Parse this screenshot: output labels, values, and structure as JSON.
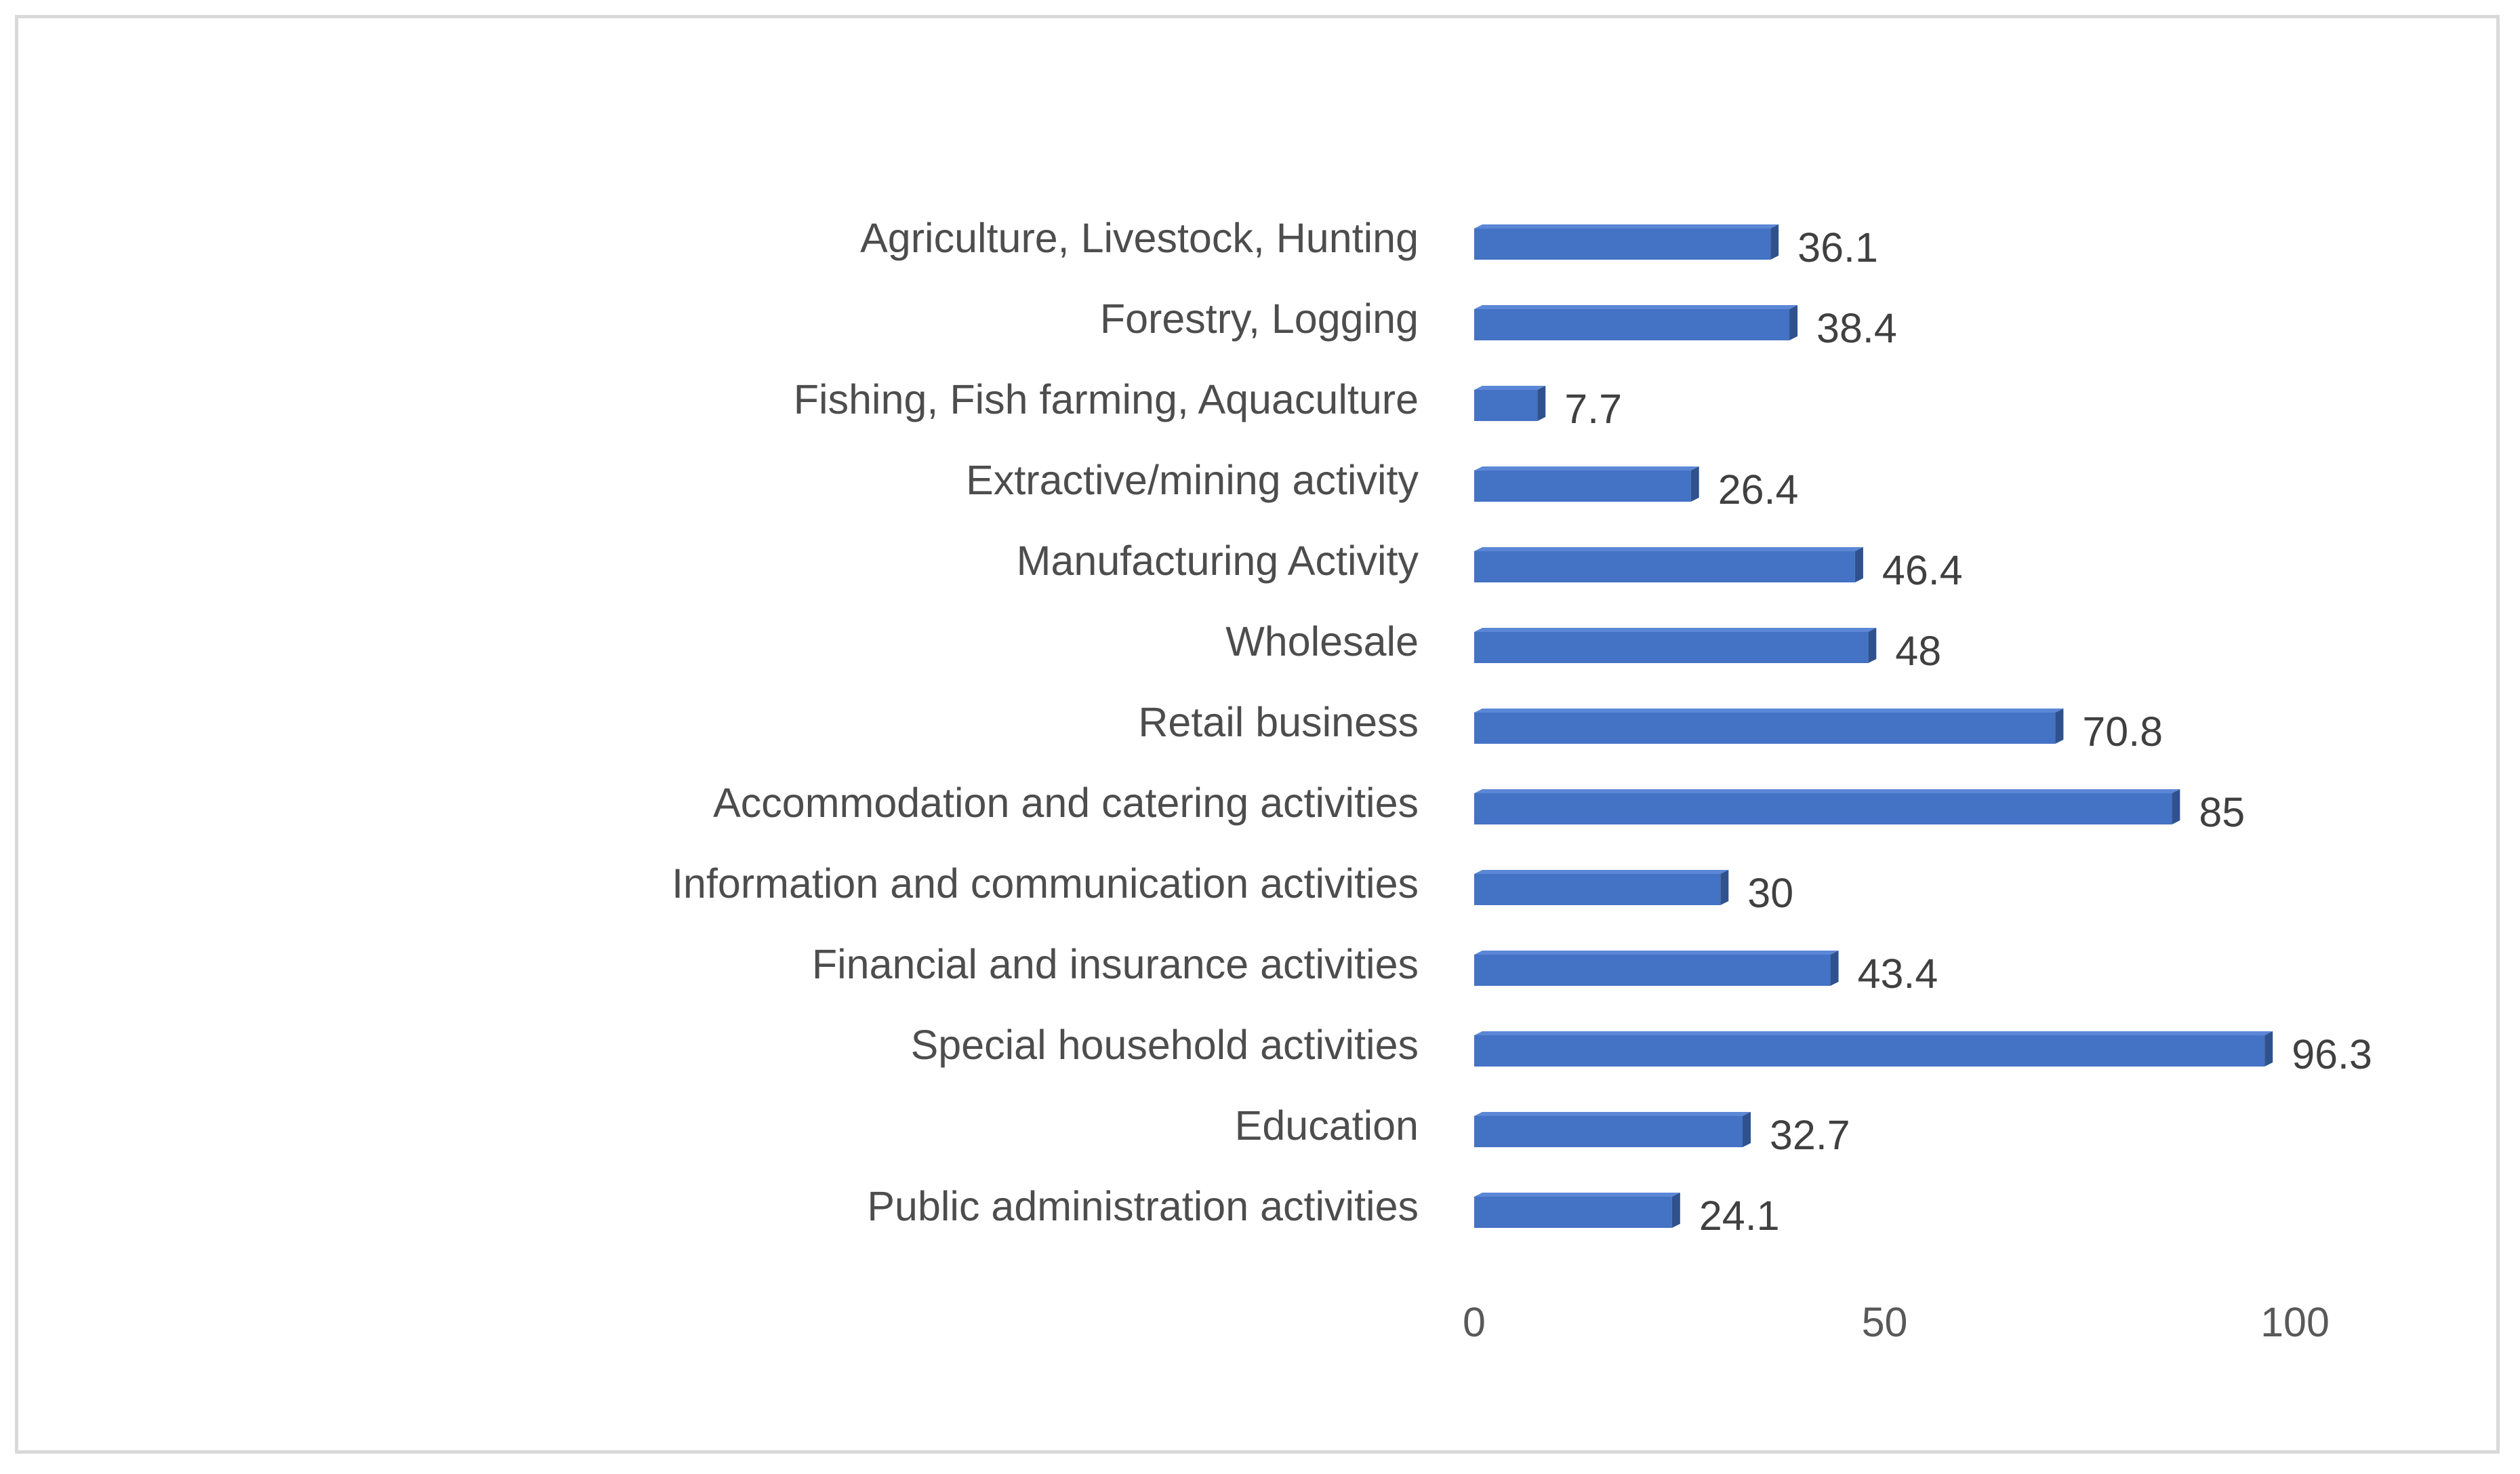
{
  "chart_data": {
    "type": "bar",
    "orientation": "horizontal",
    "title": "",
    "xlabel": "",
    "ylabel": "",
    "categories": [
      "Agriculture, Livestock, Hunting",
      "Forestry, Logging",
      "Fishing, Fish farming, Aquaculture",
      "Extractive/mining activity",
      "Manufacturing Activity",
      "Wholesale",
      "Retail business",
      "Accommodation and catering activities",
      "Information and communication activities",
      "Financial and insurance activities",
      "Special household activities",
      "Education",
      "Public administration activities"
    ],
    "values": [
      36.1,
      38.4,
      7.7,
      26.4,
      46.4,
      48,
      70.8,
      85,
      30,
      43.4,
      96.3,
      32.7,
      24.1
    ],
    "value_labels": [
      "36.1",
      "38.4",
      "7.7",
      "26.4",
      "46.4",
      "48",
      "70.8",
      "85",
      "30",
      "43.4",
      "96.3",
      "32.7",
      "24.1"
    ],
    "xlim": [
      0,
      100
    ],
    "xticks": [
      0,
      50,
      100
    ],
    "xtick_labels": [
      "0",
      "50",
      "100"
    ],
    "grid": false,
    "legend": "none",
    "colors": {
      "bar_front": "#4472c4",
      "bar_top": "#5b87d6",
      "bar_side": "#2f528f",
      "frame": "#d9d9d9"
    }
  }
}
